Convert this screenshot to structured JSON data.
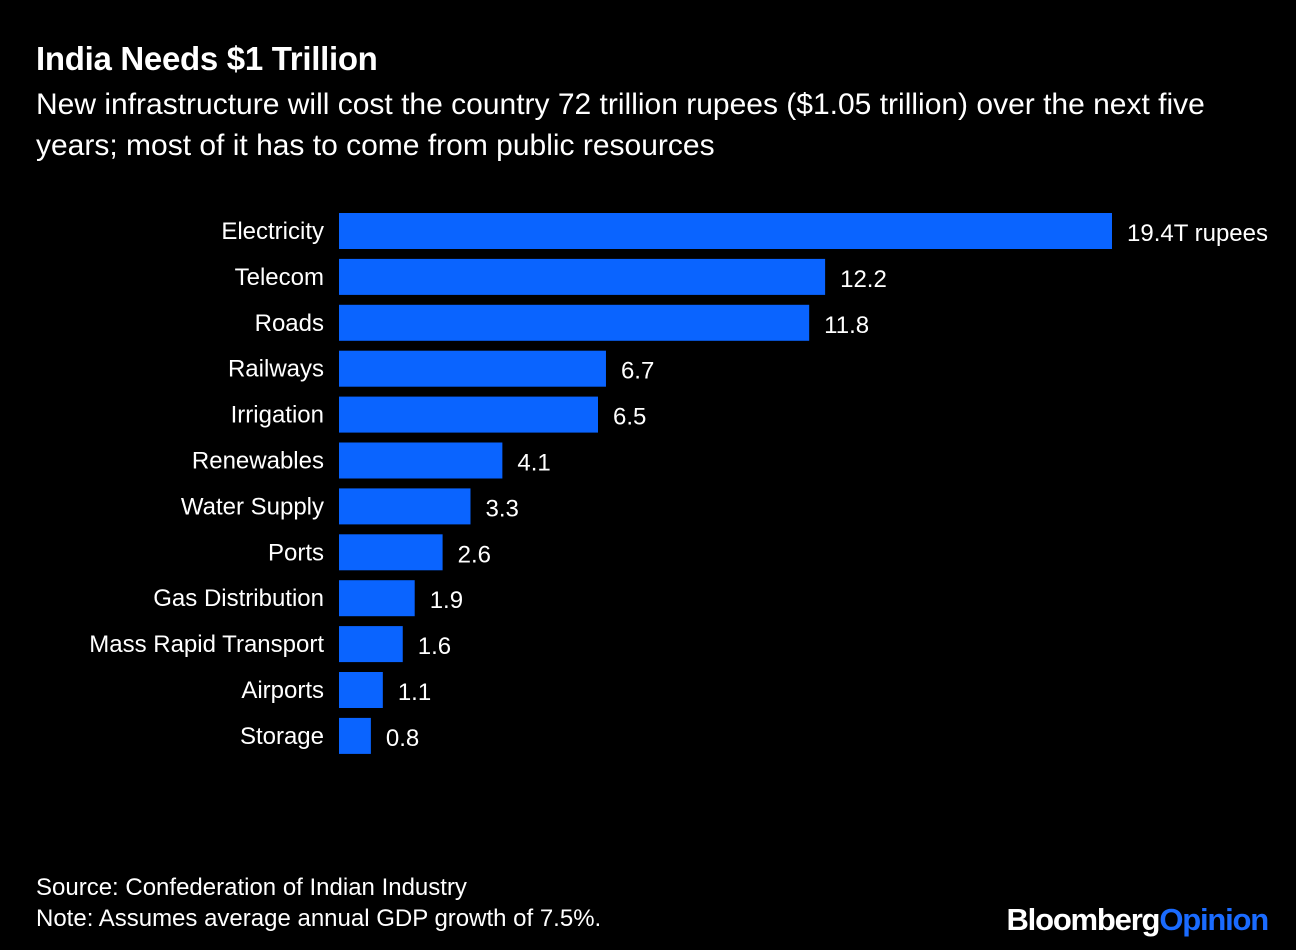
{
  "header": {
    "title": "India Needs $1 Trillion",
    "subtitle": "New infrastructure will cost the country 72 trillion rupees ($1.05 trillion) over the next five years; most of it has to come from public resources"
  },
  "footer": {
    "source": "Source: Confederation of Indian Industry",
    "note": "Note: Assumes average annual GDP growth of 7.5%."
  },
  "brand": {
    "part1": "Bloomberg",
    "part2": "Opinion"
  },
  "colors": {
    "background": "#000000",
    "bar": "#0a64ff",
    "text": "#ffffff",
    "brand_accent": "#1a6bff"
  },
  "chart_data": {
    "type": "bar",
    "orientation": "horizontal",
    "categories": [
      "Electricity",
      "Telecom",
      "Roads",
      "Railways",
      "Irrigation",
      "Renewables",
      "Water Supply",
      "Ports",
      "Gas Distribution",
      "Mass Rapid Transport",
      "Airports",
      "Storage"
    ],
    "values": [
      19.4,
      12.2,
      11.8,
      6.7,
      6.5,
      4.1,
      3.3,
      2.6,
      1.9,
      1.6,
      1.1,
      0.8
    ],
    "value_labels": [
      "19.4T rupees",
      "12.2",
      "11.8",
      "6.7",
      "6.5",
      "4.1",
      "3.3",
      "2.6",
      "1.9",
      "1.6",
      "1.1",
      "0.8"
    ],
    "xlim": [
      0,
      19.4
    ],
    "grid": false,
    "legend": "none"
  }
}
